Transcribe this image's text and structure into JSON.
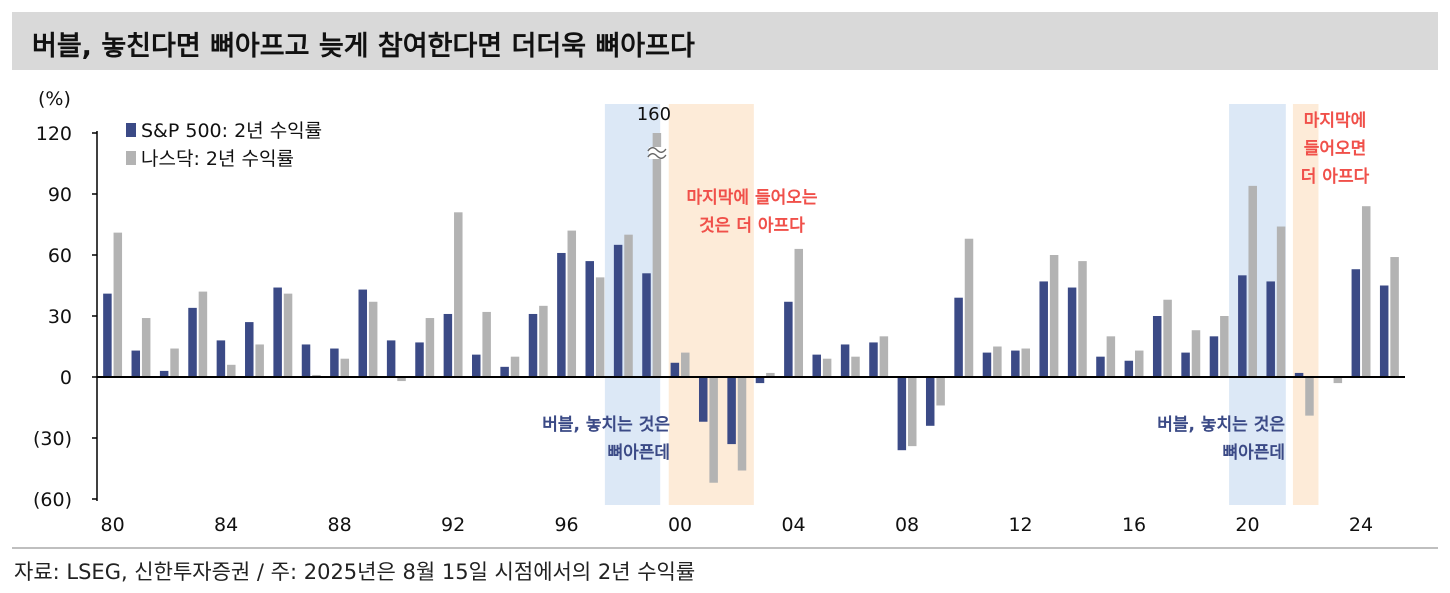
{
  "title": "버블, 놓친다면 뼈아프고 늦게 참여한다면 더더욱 뼈아프다",
  "source": "자료: LSEG, 신한투자증권 / 주: 2025년은 8월 15일 시점에서의 2년 수익률",
  "colors": {
    "sp500": "#3b4a86",
    "nasdaq": "#b3b3b3",
    "blue_shade": "#dce8f6",
    "orange_shade": "#fdebd8",
    "red_text": "#f0504a",
    "navy_text": "#3b4a86",
    "title_bg": "#d9d9d9"
  },
  "chart_data": {
    "type": "bar",
    "unit_label": "(%)",
    "ylim": [
      -60,
      120
    ],
    "yticks": [
      120,
      90,
      60,
      30,
      0,
      -30,
      -60
    ],
    "ytick_labels": [
      "120",
      "90",
      "60",
      "30",
      "0",
      "(30)",
      "(60)"
    ],
    "xlim": [
      1980,
      2025
    ],
    "xticks": [
      1980,
      1984,
      1988,
      1992,
      1996,
      2000,
      2004,
      2008,
      2012,
      2016,
      2020,
      2024
    ],
    "xtick_labels": [
      "80",
      "84",
      "88",
      "92",
      "96",
      "00",
      "04",
      "08",
      "12",
      "16",
      "20",
      "24"
    ],
    "years": [
      1980,
      1981,
      1982,
      1983,
      1984,
      1985,
      1986,
      1987,
      1988,
      1989,
      1990,
      1991,
      1992,
      1993,
      1994,
      1995,
      1996,
      1997,
      1998,
      1999,
      2000,
      2001,
      2002,
      2003,
      2004,
      2005,
      2006,
      2007,
      2008,
      2009,
      2010,
      2011,
      2012,
      2013,
      2014,
      2015,
      2016,
      2017,
      2018,
      2019,
      2020,
      2021,
      2022,
      2023,
      2024,
      2025
    ],
    "series": [
      {
        "name": "S&P 500: 2년 수익률",
        "values": [
          41,
          13,
          3,
          34,
          18,
          27,
          44,
          16,
          14,
          43,
          18,
          17,
          31,
          11,
          5,
          31,
          61,
          57,
          65,
          51,
          7,
          -22,
          -33,
          -3,
          37,
          11,
          16,
          17,
          -36,
          -24,
          39,
          12,
          13,
          47,
          44,
          10,
          8,
          30,
          12,
          20,
          50,
          47,
          2,
          0,
          53,
          45
        ]
      },
      {
        "name": "나스닥: 2년 수익률",
        "values": [
          71,
          29,
          14,
          42,
          6,
          16,
          41,
          1,
          9,
          37,
          -2,
          29,
          81,
          32,
          10,
          35,
          72,
          49,
          70,
          120,
          12,
          -52,
          -46,
          2,
          63,
          9,
          10,
          20,
          -34,
          -14,
          68,
          15,
          14,
          60,
          57,
          20,
          13,
          38,
          23,
          30,
          94,
          74,
          -19,
          -3,
          84,
          59
        ]
      }
    ],
    "break_label": "160",
    "break_year": 1999,
    "legend_position": "top-left",
    "shaded_periods": [
      {
        "kind": "blue",
        "from": 1997.35,
        "to": 1999.3
      },
      {
        "kind": "orange",
        "from": 1999.6,
        "to": 2002.6
      },
      {
        "kind": "blue",
        "from": 2019.35,
        "to": 2021.35
      },
      {
        "kind": "orange",
        "from": 2021.6,
        "to": 2022.5
      }
    ],
    "annotations": [
      {
        "color": "red",
        "lines": [
          "마지막에 들어오는",
          "것은 더 아프다"
        ]
      },
      {
        "color": "navy",
        "lines": [
          "버블, 놓치는 것은",
          "뼈아픈데"
        ]
      },
      {
        "color": "red",
        "lines": [
          "마지막에",
          "들어오면",
          "더 아프다"
        ]
      },
      {
        "color": "navy",
        "lines": [
          "버블, 놓치는 것은",
          "뼈아픈데"
        ]
      }
    ]
  }
}
